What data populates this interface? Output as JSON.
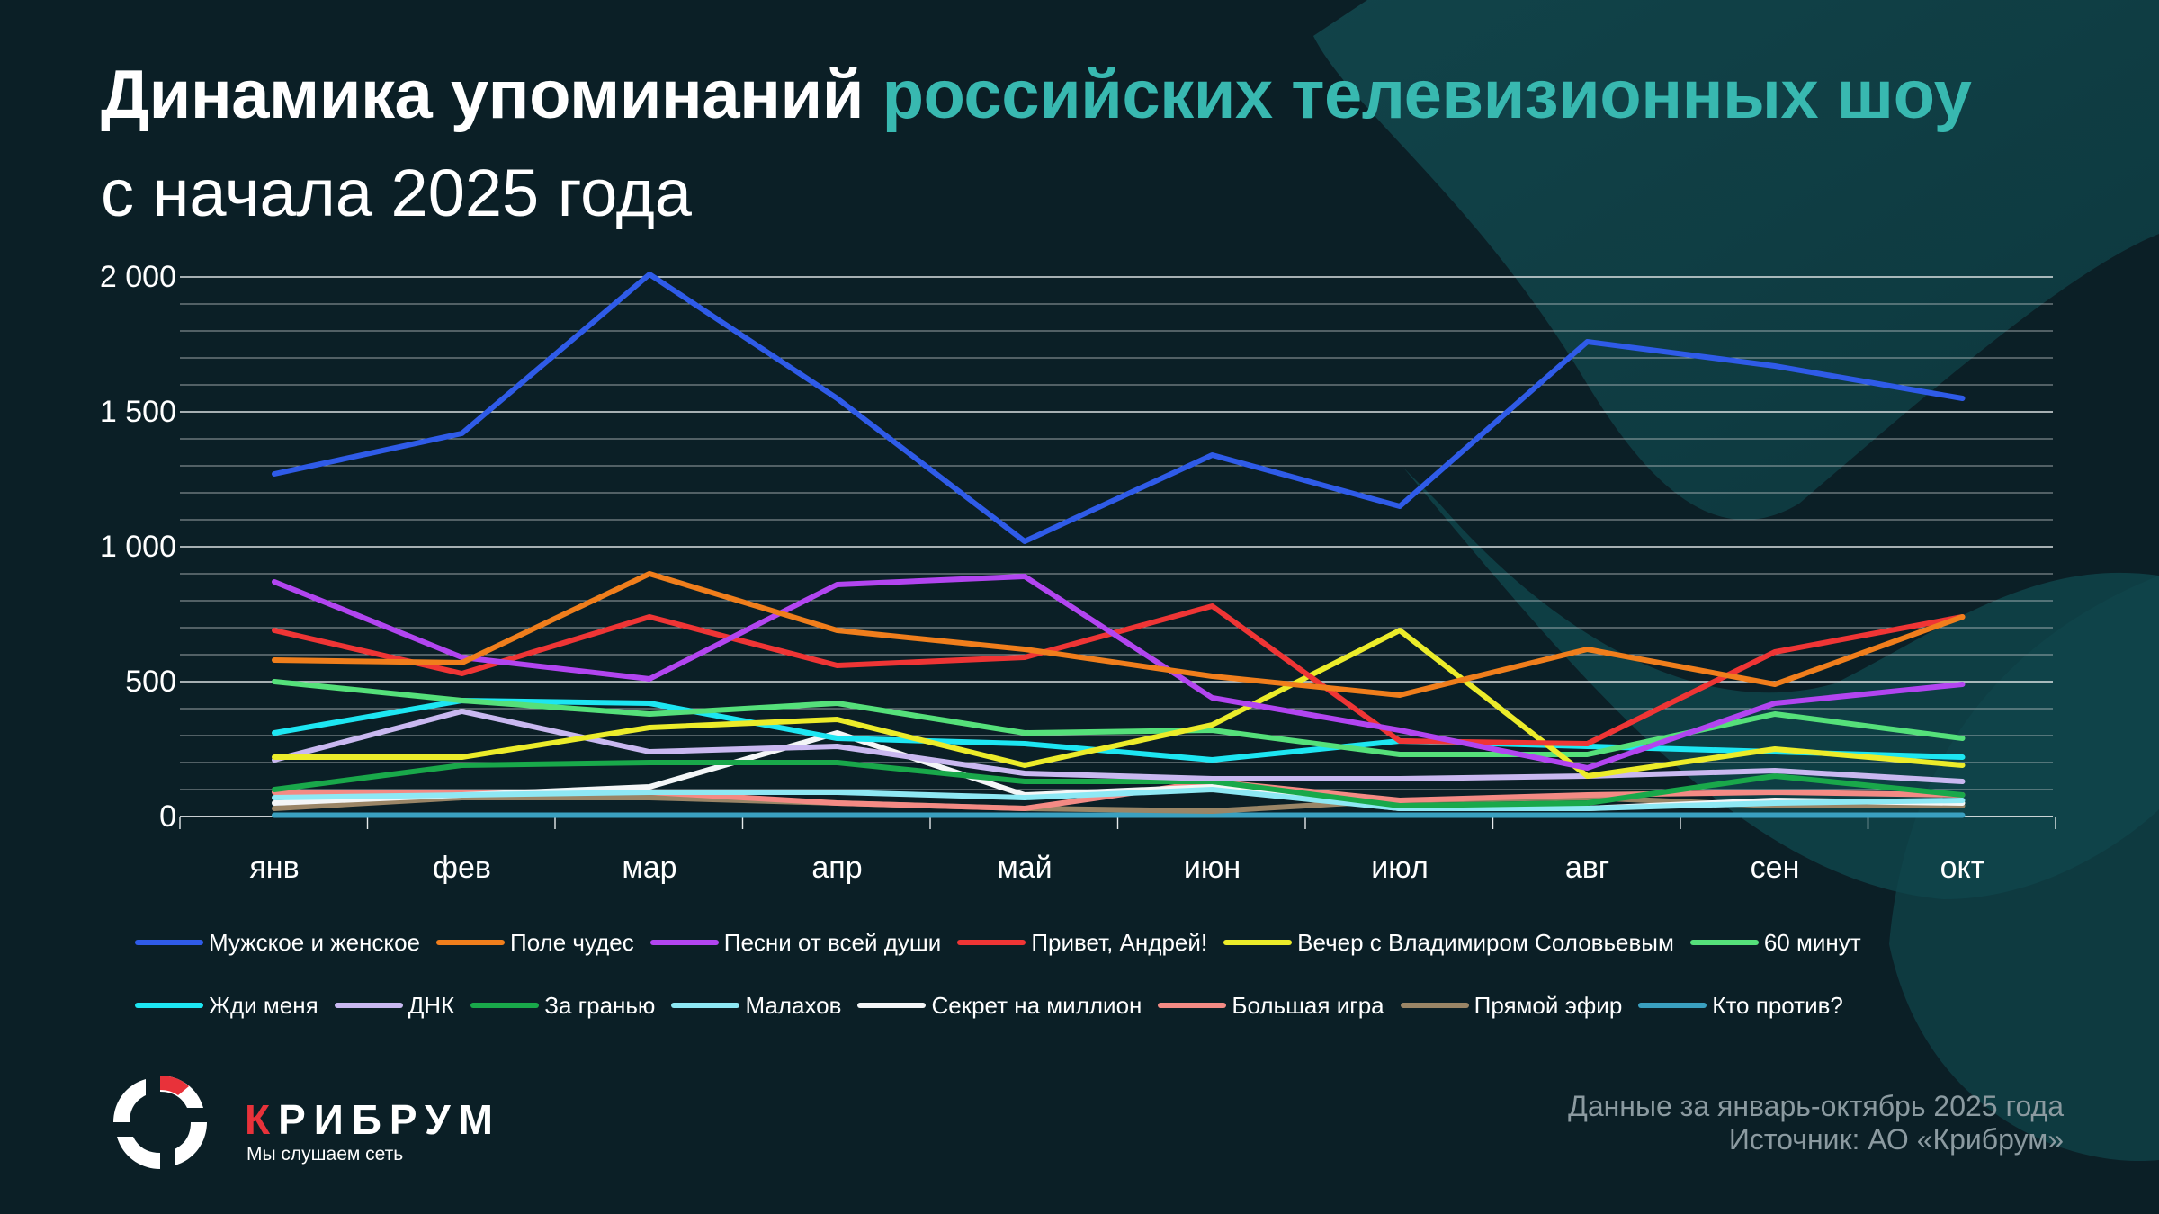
{
  "header": {
    "title_main": "Динамика упоминаний",
    "title_accent": "российских телевизионных шоу",
    "subtitle": "с начала 2025 года"
  },
  "colors": {
    "background": "#0b1f26",
    "accent": "#38b8b0",
    "brand_red": "#e8323a",
    "grid": "#c8ccce"
  },
  "chart_data": {
    "type": "line",
    "title": "Динамика упоминаний российских телевизионных шоу с начала 2025 года",
    "xlabel": "",
    "ylabel": "",
    "categories": [
      "янв",
      "фев",
      "мар",
      "апр",
      "май",
      "июн",
      "июл",
      "авг",
      "сен",
      "окт"
    ],
    "ylim": [
      0,
      2000
    ],
    "yticks": [
      0,
      500,
      1000,
      1500,
      2000
    ],
    "ytick_labels": [
      "0",
      "500",
      "1 000",
      "1 500",
      "2 000"
    ],
    "grid": true,
    "legend_position": "bottom",
    "series": [
      {
        "name": "Мужское и женское",
        "color": "#2f5be8",
        "values": [
          1270,
          1420,
          2010,
          1550,
          1020,
          1340,
          1150,
          1760,
          1670,
          1550
        ]
      },
      {
        "name": "Поле чудес",
        "color": "#f07e1c",
        "values": [
          580,
          570,
          900,
          690,
          620,
          520,
          450,
          620,
          490,
          740
        ]
      },
      {
        "name": "Песни от всей души",
        "color": "#b245f0",
        "values": [
          870,
          590,
          510,
          860,
          890,
          440,
          320,
          180,
          420,
          490
        ]
      },
      {
        "name": "Привет, Андрей!",
        "color": "#ef3535",
        "values": [
          690,
          530,
          740,
          560,
          590,
          780,
          280,
          270,
          610,
          740
        ]
      },
      {
        "name": "Вечер с Владимиром Соловьевым",
        "color": "#ecec2a",
        "values": [
          220,
          220,
          330,
          360,
          190,
          340,
          690,
          150,
          250,
          190
        ]
      },
      {
        "name": "60 минут",
        "color": "#55e07a",
        "values": [
          500,
          430,
          380,
          420,
          310,
          320,
          230,
          230,
          380,
          290
        ]
      },
      {
        "name": "Жди меня",
        "color": "#1de6f2",
        "values": [
          310,
          430,
          420,
          290,
          270,
          210,
          280,
          260,
          240,
          220
        ]
      },
      {
        "name": "ДНК",
        "color": "#c9b8f0",
        "values": [
          210,
          390,
          240,
          260,
          160,
          140,
          140,
          150,
          170,
          130
        ]
      },
      {
        "name": "За гранью",
        "color": "#19a84a",
        "values": [
          100,
          190,
          200,
          200,
          130,
          130,
          40,
          50,
          150,
          80
        ]
      },
      {
        "name": "Малахов",
        "color": "#8ee8f4",
        "values": [
          70,
          80,
          90,
          90,
          70,
          100,
          30,
          30,
          50,
          60
        ]
      },
      {
        "name": "Секрет на миллион",
        "color": "#f4f6f7",
        "values": [
          50,
          80,
          110,
          310,
          80,
          110,
          30,
          30,
          60,
          50
        ]
      },
      {
        "name": "Большая игра",
        "color": "#f48a84",
        "values": [
          90,
          90,
          90,
          50,
          30,
          130,
          60,
          80,
          90,
          80
        ]
      },
      {
        "name": "Прямой эфир",
        "color": "#9a8566",
        "values": [
          30,
          70,
          70,
          50,
          30,
          20,
          60,
          70,
          40,
          40
        ]
      },
      {
        "name": "Кто против?",
        "color": "#3aa0c0",
        "values": [
          5,
          5,
          5,
          5,
          5,
          5,
          5,
          5,
          5,
          5
        ]
      }
    ]
  },
  "brand": {
    "name_first": "К",
    "name_rest": "РИБРУМ",
    "tagline": "Мы слушаем сеть"
  },
  "footer": {
    "line1": "Данные за январь-октябрь 2025 года",
    "line2": "Источник: АО «Крибрум»"
  }
}
